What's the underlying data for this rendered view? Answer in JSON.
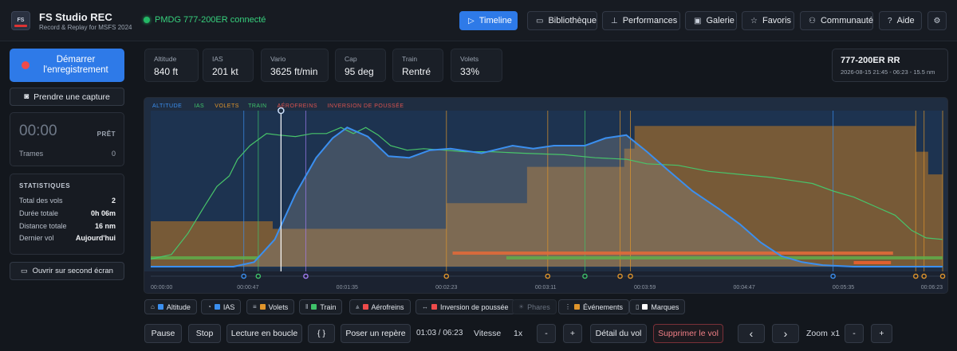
{
  "app": {
    "logo_text": "FS",
    "title": "FS Studio REC",
    "subtitle": "Record & Replay for MSFS 2024",
    "connection": "PMDG 777-200ER connecté"
  },
  "nav": [
    {
      "label": "Timeline",
      "icon": "play-icon",
      "active": true
    },
    {
      "label": "Bibliothèque",
      "icon": "folder-icon"
    },
    {
      "label": "Performances",
      "icon": "bar-chart-icon"
    },
    {
      "label": "Galerie",
      "icon": "image-icon"
    },
    {
      "label": "Favoris",
      "icon": "star-icon"
    },
    {
      "label": "Communauté",
      "icon": "users-icon"
    },
    {
      "label": "Aide",
      "icon": "help-icon"
    }
  ],
  "left": {
    "record_label_1": "Démarrer",
    "record_label_2": "l'enregistrement",
    "capture_label": "Prendre une capture",
    "timer": "00:00",
    "status": "PRÊT",
    "frames_label": "Trames",
    "frames_value": "0",
    "stats_title": "STATISTIQUES",
    "stats": [
      {
        "label": "Total des vols",
        "value": "2"
      },
      {
        "label": "Durée totale",
        "value": "0h 06m"
      },
      {
        "label": "Distance totale",
        "value": "16 nm"
      },
      {
        "label": "Dernier vol",
        "value": "Aujourd'hui"
      }
    ],
    "second_screen_label": "Ouvrir sur second écran"
  },
  "metrics": [
    {
      "label": "Altitude",
      "value": "840 ft"
    },
    {
      "label": "IAS",
      "value": "201 kt"
    },
    {
      "label": "Vario",
      "value": "3625 ft/min"
    },
    {
      "label": "Cap",
      "value": "95 deg"
    },
    {
      "label": "Train",
      "value": "Rentré"
    },
    {
      "label": "Volets",
      "value": "33%"
    }
  ],
  "aircraft": {
    "name": "777-200ER RR",
    "meta": "2026-08-15 21:45 - 06:23 - 15.5 nm"
  },
  "chart_data": {
    "type": "line",
    "legend": [
      {
        "name": "ALTITUDE",
        "color": "#3b8fef"
      },
      {
        "name": "IAS",
        "color": "#3fc36a"
      },
      {
        "name": "VOLETS",
        "color": "#e0952b"
      },
      {
        "name": "TRAIN",
        "color": "#3fc36a"
      },
      {
        "name": "AÉROFREINS",
        "color": "#d9534f"
      },
      {
        "name": "INVERSION DE POUSSÉE",
        "color": "#d9534f"
      }
    ],
    "xlim": [
      0,
      383
    ],
    "x_ticks": [
      {
        "t": 0,
        "label": "00:00:00"
      },
      {
        "t": 47,
        "label": "00:00:47"
      },
      {
        "t": 95,
        "label": "00:01:35"
      },
      {
        "t": 143,
        "label": "00:02:23"
      },
      {
        "t": 191,
        "label": "00:03:11"
      },
      {
        "t": 239,
        "label": "00:03:59"
      },
      {
        "t": 287,
        "label": "00:04:47"
      },
      {
        "t": 335,
        "label": "00:05:35"
      },
      {
        "t": 383,
        "label": "00:06:23"
      }
    ],
    "playhead_t": 63,
    "altitude": [
      [
        0,
        0
      ],
      [
        40,
        0
      ],
      [
        50,
        3
      ],
      [
        60,
        18
      ],
      [
        70,
        48
      ],
      [
        80,
        72
      ],
      [
        88,
        85
      ],
      [
        95,
        92
      ],
      [
        105,
        86
      ],
      [
        115,
        73
      ],
      [
        125,
        72
      ],
      [
        135,
        77
      ],
      [
        145,
        78
      ],
      [
        160,
        75
      ],
      [
        175,
        80
      ],
      [
        185,
        78
      ],
      [
        195,
        80
      ],
      [
        210,
        80
      ],
      [
        220,
        85
      ],
      [
        230,
        87
      ],
      [
        240,
        76
      ],
      [
        250,
        64
      ],
      [
        262,
        50
      ],
      [
        275,
        38
      ],
      [
        285,
        28
      ],
      [
        295,
        16
      ],
      [
        305,
        7
      ],
      [
        315,
        3
      ],
      [
        325,
        1
      ],
      [
        340,
        0
      ],
      [
        383,
        0
      ]
    ],
    "ias": [
      [
        0,
        5
      ],
      [
        10,
        8
      ],
      [
        18,
        22
      ],
      [
        26,
        40
      ],
      [
        32,
        53
      ],
      [
        38,
        60
      ],
      [
        42,
        71
      ],
      [
        48,
        80
      ],
      [
        56,
        88
      ],
      [
        62,
        87
      ],
      [
        70,
        86
      ],
      [
        78,
        88
      ],
      [
        85,
        88
      ],
      [
        92,
        92
      ],
      [
        98,
        88
      ],
      [
        104,
        92
      ],
      [
        110,
        87
      ],
      [
        116,
        80
      ],
      [
        124,
        77
      ],
      [
        132,
        78
      ],
      [
        142,
        77
      ],
      [
        152,
        76
      ],
      [
        165,
        76
      ],
      [
        180,
        75
      ],
      [
        200,
        74
      ],
      [
        215,
        72
      ],
      [
        230,
        71
      ],
      [
        240,
        68
      ],
      [
        255,
        67
      ],
      [
        270,
        63
      ],
      [
        285,
        61
      ],
      [
        300,
        59
      ],
      [
        310,
        57
      ],
      [
        320,
        55
      ],
      [
        330,
        50
      ],
      [
        340,
        46
      ],
      [
        350,
        40
      ],
      [
        360,
        34
      ],
      [
        368,
        24
      ],
      [
        375,
        19
      ],
      [
        383,
        18
      ]
    ],
    "flaps_steps": [
      [
        0,
        30
      ],
      [
        59,
        30
      ],
      [
        59,
        25
      ],
      [
        143,
        25
      ],
      [
        143,
        42
      ],
      [
        182,
        42
      ],
      [
        182,
        66
      ],
      [
        229,
        66
      ],
      [
        229,
        78
      ],
      [
        234,
        78
      ],
      [
        234,
        93
      ],
      [
        370,
        93
      ],
      [
        370,
        76
      ],
      [
        376,
        76
      ],
      [
        376,
        61
      ],
      [
        383,
        61
      ]
    ],
    "gear_segments": [
      [
        0,
        52
      ],
      [
        172,
        383
      ]
    ],
    "speedbrake_segments": [
      [
        146,
        359
      ]
    ],
    "reverser_segments": [
      [
        340,
        358
      ]
    ],
    "event_lines": [
      {
        "t": 45,
        "c": "#3b8fef"
      },
      {
        "t": 52,
        "c": "#3fc36a"
      },
      {
        "t": 75,
        "c": "#a27df2"
      },
      {
        "t": 143,
        "c": "#e0952b"
      },
      {
        "t": 192,
        "c": "#e0952b"
      },
      {
        "t": 210,
        "c": "#3fc36a"
      },
      {
        "t": 227,
        "c": "#e0952b"
      },
      {
        "t": 232,
        "c": "#e0952b"
      },
      {
        "t": 330,
        "c": "#3b8fef"
      },
      {
        "t": 370,
        "c": "#e0952b"
      },
      {
        "t": 374,
        "c": "#e0952b"
      },
      {
        "t": 383,
        "c": "#e0952b"
      }
    ]
  },
  "toggles": [
    {
      "label": "Altitude",
      "color": "#3b8fef",
      "icon": "mountain-icon"
    },
    {
      "label": "IAS",
      "color": "#3b8fef",
      "icon": "gauge-icon"
    },
    {
      "label": "Volets",
      "color": "#e0952b",
      "icon": "flaps-icon"
    },
    {
      "label": "Train",
      "color": "#3fc36a",
      "icon": "gear-down-icon"
    },
    {
      "label": "Aérofreins",
      "color": "#ef4b4b",
      "icon": "speedbrake-icon"
    },
    {
      "label": "Inversion de poussée",
      "color": "#ef4b4b",
      "icon": "reverser-icon"
    },
    {
      "label": "Phares",
      "color": "",
      "icon": "light-icon",
      "off": true
    },
    {
      "label": "Événements",
      "color": "#e0952b",
      "icon": "events-icon"
    },
    {
      "label": "Marques",
      "color": "#ffffff",
      "icon": "bookmark-icon"
    }
  ],
  "controls": {
    "pause": "Pause",
    "stop": "Stop",
    "loop": "Lecture en boucle",
    "braces": "{ }",
    "marker": "Poser un repère",
    "time": "01:03 / 06:23",
    "speed_label": "Vitesse",
    "speed_value": "1x",
    "minus": "-",
    "plus": "+",
    "detail": "Détail du vol",
    "delete": "Supprimer le vol",
    "prev": "‹",
    "next": "›",
    "zoom_label": "Zoom",
    "zoom_value": "x1"
  }
}
